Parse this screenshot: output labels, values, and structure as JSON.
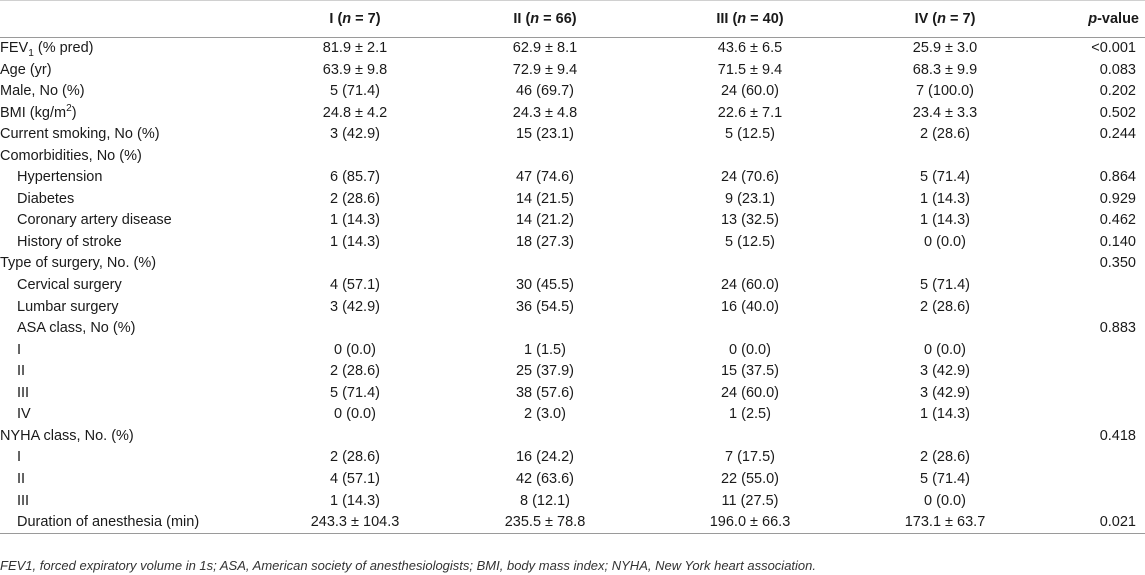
{
  "table": {
    "columns": [
      {
        "roman": "I",
        "n": "n",
        "count": " = 7)"
      },
      {
        "roman": "II",
        "n": "n",
        "count": " = 66)"
      },
      {
        "roman": "III",
        "n": "n",
        "count": " = 40)"
      },
      {
        "roman": "IV",
        "n": "n",
        "count": " = 7)"
      }
    ],
    "pvalue_italic": "p",
    "pvalue_rest": "-value",
    "rows": [
      {
        "label": "FEV",
        "label_sub": "1",
        "label_rest": " (% pred)",
        "sub": false,
        "values": [
          "81.9 ± 2.1",
          "62.9 ± 8.1",
          "43.6 ± 6.5",
          "25.9 ± 3.0"
        ],
        "p": "<0.001"
      },
      {
        "label": "Age (yr)",
        "sub": false,
        "values": [
          "63.9 ± 9.8",
          "72.9 ± 9.4",
          "71.5 ± 9.4",
          "68.3 ± 9.9"
        ],
        "p": "0.083"
      },
      {
        "label": "Male, No (%)",
        "sub": false,
        "values": [
          "5 (71.4)",
          "46 (69.7)",
          "24 (60.0)",
          "7 (100.0)"
        ],
        "p": "0.202"
      },
      {
        "label": "BMI (kg/m",
        "label_sup": "2",
        "label_rest": ")",
        "sub": false,
        "values": [
          "24.8 ± 4.2",
          "24.3 ± 4.8",
          "22.6 ± 7.1",
          "23.4 ± 3.3"
        ],
        "p": "0.502"
      },
      {
        "label": "Current smoking, No (%)",
        "sub": false,
        "values": [
          "3 (42.9)",
          "15 (23.1)",
          "5 (12.5)",
          "2 (28.6)"
        ],
        "p": "0.244"
      },
      {
        "label": "Comorbidities, No (%)",
        "sub": false,
        "values": [
          "",
          "",
          "",
          ""
        ],
        "p": ""
      },
      {
        "label": "Hypertension",
        "sub": true,
        "values": [
          "6 (85.7)",
          "47 (74.6)",
          "24 (70.6)",
          "5 (71.4)"
        ],
        "p": "0.864"
      },
      {
        "label": "Diabetes",
        "sub": true,
        "values": [
          "2 (28.6)",
          "14 (21.5)",
          "9 (23.1)",
          "1 (14.3)"
        ],
        "p": "0.929"
      },
      {
        "label": "Coronary artery disease",
        "sub": true,
        "values": [
          "1 (14.3)",
          "14 (21.2)",
          "13 (32.5)",
          "1 (14.3)"
        ],
        "p": "0.462"
      },
      {
        "label": "History of stroke",
        "sub": true,
        "values": [
          "1 (14.3)",
          "18 (27.3)",
          "5 (12.5)",
          "0 (0.0)"
        ],
        "p": "0.140"
      },
      {
        "label": "Type of surgery, No. (%)",
        "sub": false,
        "values": [
          "",
          "",
          "",
          ""
        ],
        "p": "0.350"
      },
      {
        "label": "Cervical surgery",
        "sub": true,
        "values": [
          "4 (57.1)",
          "30 (45.5)",
          "24 (60.0)",
          "5 (71.4)"
        ],
        "p": ""
      },
      {
        "label": "Lumbar surgery",
        "sub": true,
        "values": [
          "3 (42.9)",
          "36 (54.5)",
          "16 (40.0)",
          "2 (28.6)"
        ],
        "p": ""
      },
      {
        "label": "ASA class, No (%)",
        "sub": true,
        "values": [
          "",
          "",
          "",
          ""
        ],
        "p": "0.883"
      },
      {
        "label": "I",
        "sub": true,
        "values": [
          "0 (0.0)",
          "1 (1.5)",
          "0 (0.0)",
          "0 (0.0)"
        ],
        "p": ""
      },
      {
        "label": "II",
        "sub": true,
        "values": [
          "2 (28.6)",
          "25 (37.9)",
          "15 (37.5)",
          "3 (42.9)"
        ],
        "p": ""
      },
      {
        "label": "III",
        "sub": true,
        "values": [
          "5 (71.4)",
          "38 (57.6)",
          "24 (60.0)",
          "3 (42.9)"
        ],
        "p": ""
      },
      {
        "label": "IV",
        "sub": true,
        "values": [
          "0 (0.0)",
          "2 (3.0)",
          "1 (2.5)",
          "1 (14.3)"
        ],
        "p": ""
      },
      {
        "label": "NYHA class, No. (%)",
        "sub": false,
        "values": [
          "",
          "",
          "",
          ""
        ],
        "p": "0.418"
      },
      {
        "label": "I",
        "sub": true,
        "values": [
          "2 (28.6)",
          "16 (24.2)",
          "7 (17.5)",
          "2 (28.6)"
        ],
        "p": ""
      },
      {
        "label": "II",
        "sub": true,
        "values": [
          "4 (57.1)",
          "42 (63.6)",
          "22 (55.0)",
          "5 (71.4)"
        ],
        "p": ""
      },
      {
        "label": "III",
        "sub": true,
        "values": [
          "1 (14.3)",
          "8 (12.1)",
          "11 (27.5)",
          "0 (0.0)"
        ],
        "p": ""
      },
      {
        "label": "Duration of anesthesia (min)",
        "sub": true,
        "values": [
          "243.3 ± 104.3",
          "235.5 ± 78.8",
          "196.0 ± 66.3",
          "173.1 ± 63.7"
        ],
        "p": "0.021"
      }
    ]
  },
  "footnote": "FEV1, forced expiratory volume in 1s; ASA, American society of anesthesiologists; BMI, body mass index; NYHA, New York heart association."
}
